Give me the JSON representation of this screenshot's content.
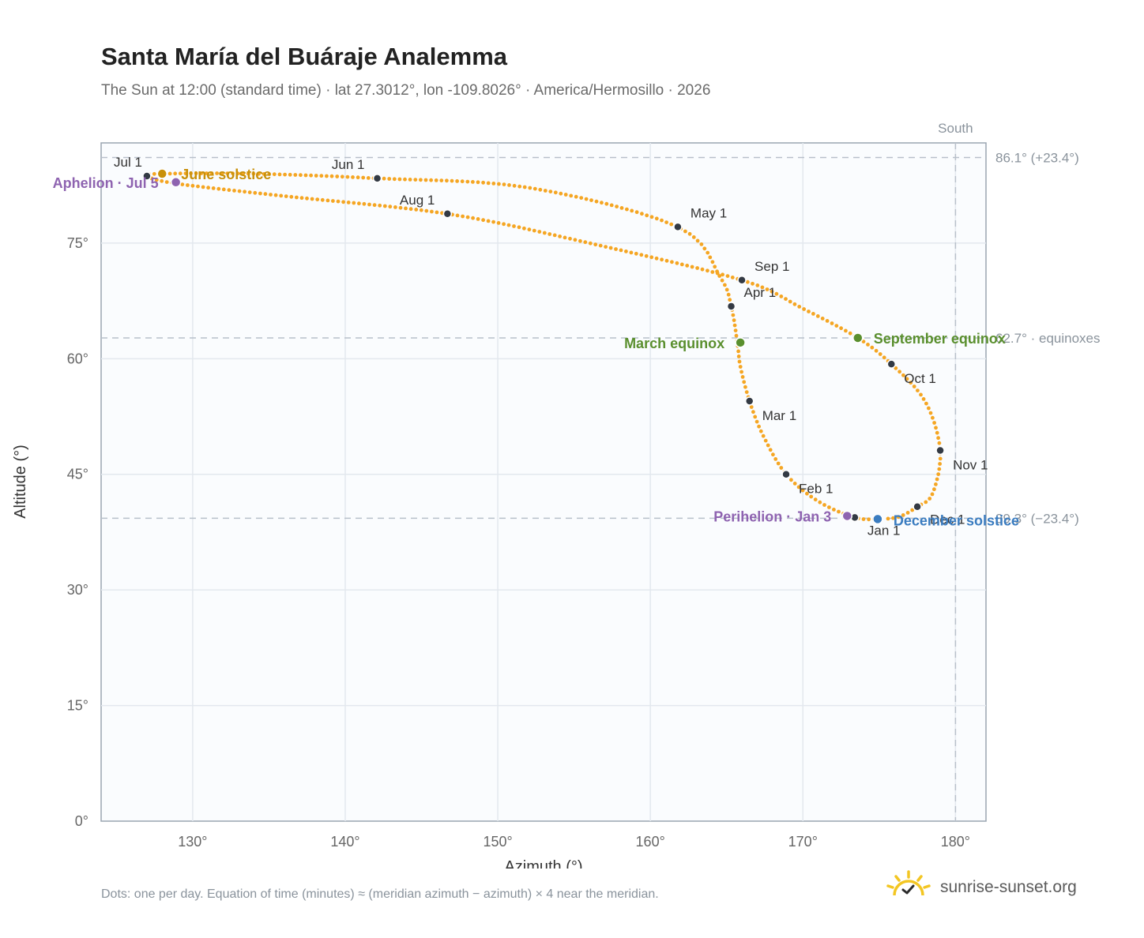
{
  "header": {
    "title": "Santa María del Buáraje Analemma",
    "subtitle": "The Sun at 12:00 (standard time) · lat 27.3012°, lon -109.8026° · America/Hermosillo · 2026"
  },
  "footer": {
    "note": "Dots: one per day. Equation of time (minutes) ≈ (meridian azimuth − azimuth) × 4 near the meridian.",
    "brand": "sunrise-sunset.org"
  },
  "chart_data": {
    "type": "scatter",
    "xlabel": "Azimuth (°)",
    "ylabel": "Altitude (°)",
    "xlim": [
      124,
      182
    ],
    "ylim": [
      0,
      88
    ],
    "x_ticks": [
      130,
      140,
      150,
      160,
      170,
      180
    ],
    "x_tick_labels": [
      "130°",
      "140°",
      "150°",
      "160°",
      "170°",
      "180°"
    ],
    "y_ticks": [
      0,
      15,
      30,
      45,
      60,
      75
    ],
    "y_tick_labels": [
      "0°",
      "15°",
      "30°",
      "45°",
      "60°",
      "75°"
    ],
    "grid": true,
    "colors": {
      "path": "#f5a623",
      "month": "#333a44",
      "june": "#c8900a",
      "equinox": "#5a8f2e",
      "december": "#3a7cc0",
      "apsis": "#8e63b0",
      "ref": "#b8c0ca",
      "plot_bg": "#fafcfe"
    },
    "reference_lines": {
      "south": {
        "x": 180,
        "label": "South"
      },
      "max": {
        "y": 86.1,
        "label": "86.1° (+23.4°)"
      },
      "equinox": {
        "y": 62.7,
        "label": "62.7° · equinoxes"
      },
      "min": {
        "y": 39.3,
        "label": "39.3° (−23.4°)"
      }
    },
    "path_anchors": [
      {
        "x": 175.0,
        "y": 39.2
      },
      {
        "x": 173.4,
        "y": 39.4
      },
      {
        "x": 171.0,
        "y": 41.5
      },
      {
        "x": 168.9,
        "y": 45.0
      },
      {
        "x": 167.4,
        "y": 50.0
      },
      {
        "x": 166.5,
        "y": 54.5
      },
      {
        "x": 165.9,
        "y": 59.0
      },
      {
        "x": 165.7,
        "y": 62.1
      },
      {
        "x": 165.3,
        "y": 66.8
      },
      {
        "x": 164.6,
        "y": 70.5
      },
      {
        "x": 161.8,
        "y": 77.1
      },
      {
        "x": 152.0,
        "y": 82.2
      },
      {
        "x": 142.1,
        "y": 83.4
      },
      {
        "x": 134.0,
        "y": 84.0
      },
      {
        "x": 128.0,
        "y": 84.0
      },
      {
        "x": 127.0,
        "y": 83.7
      },
      {
        "x": 129.0,
        "y": 82.7
      },
      {
        "x": 136.0,
        "y": 81.1
      },
      {
        "x": 146.7,
        "y": 78.8
      },
      {
        "x": 156.0,
        "y": 75.0
      },
      {
        "x": 166.0,
        "y": 70.2
      },
      {
        "x": 170.0,
        "y": 66.5
      },
      {
        "x": 173.6,
        "y": 62.7
      },
      {
        "x": 175.8,
        "y": 59.3
      },
      {
        "x": 178.0,
        "y": 54.5
      },
      {
        "x": 179.0,
        "y": 48.1
      },
      {
        "x": 178.5,
        "y": 42.5
      },
      {
        "x": 177.5,
        "y": 40.8
      },
      {
        "x": 176.3,
        "y": 39.5
      },
      {
        "x": 175.0,
        "y": 39.2
      }
    ],
    "months": [
      {
        "label": "Jan 1",
        "x": 173.4,
        "y": 39.4
      },
      {
        "label": "Feb 1",
        "x": 168.9,
        "y": 45.0
      },
      {
        "label": "Mar 1",
        "x": 166.5,
        "y": 54.5
      },
      {
        "label": "Apr 1",
        "x": 165.3,
        "y": 66.8
      },
      {
        "label": "May 1",
        "x": 161.8,
        "y": 77.1
      },
      {
        "label": "Jun 1",
        "x": 142.1,
        "y": 83.4
      },
      {
        "label": "Jul 1",
        "x": 127.0,
        "y": 83.7
      },
      {
        "label": "Aug 1",
        "x": 146.7,
        "y": 78.8
      },
      {
        "label": "Sep 1",
        "x": 166.0,
        "y": 70.2
      },
      {
        "label": "Oct 1",
        "x": 175.8,
        "y": 59.3
      },
      {
        "label": "Nov 1",
        "x": 179.0,
        "y": 48.1
      },
      {
        "label": "Dec 1",
        "x": 177.5,
        "y": 40.8
      }
    ],
    "events": [
      {
        "label": "June solstice",
        "x": 128.0,
        "y": 84.0,
        "color": "#c8900a"
      },
      {
        "label": "Aphelion · Jul 5",
        "x": 128.9,
        "y": 82.9,
        "color": "#8e63b0"
      },
      {
        "label": "March equinox",
        "x": 165.9,
        "y": 62.1,
        "color": "#5a8f2e"
      },
      {
        "label": "September equinox",
        "x": 173.6,
        "y": 62.7,
        "color": "#5a8f2e"
      },
      {
        "label": "Perihelion · Jan 3",
        "x": 172.9,
        "y": 39.6,
        "color": "#8e63b0"
      },
      {
        "label": "December solstice",
        "x": 174.9,
        "y": 39.2,
        "color": "#3a7cc0"
      }
    ]
  }
}
